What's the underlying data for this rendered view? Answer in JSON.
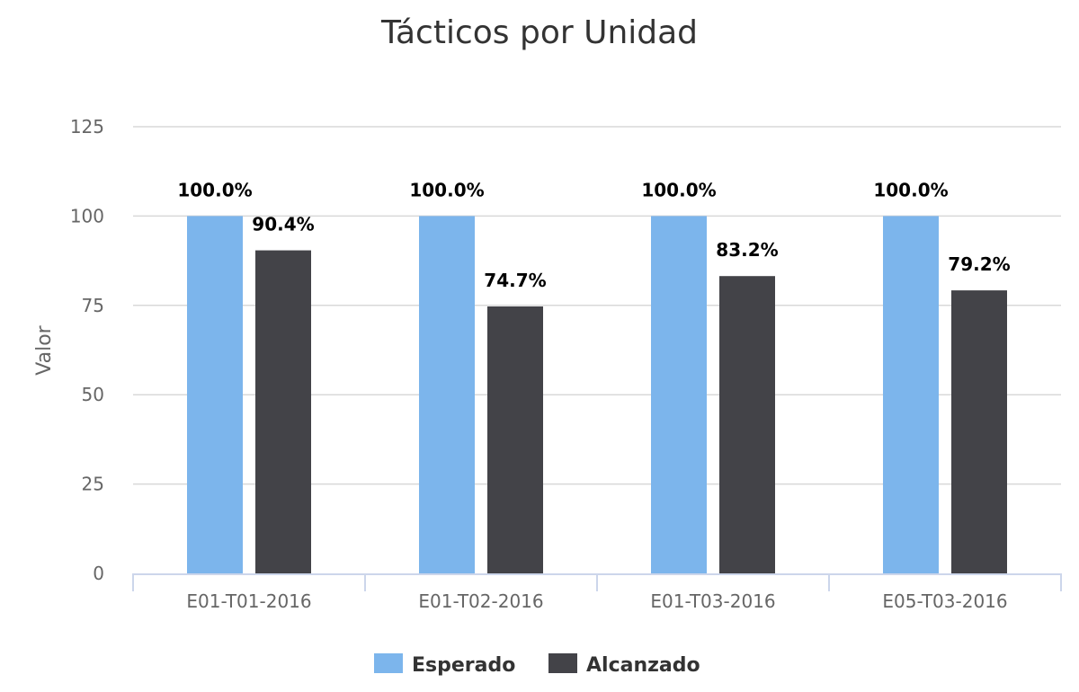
{
  "chart_data": {
    "type": "bar",
    "title": "Tácticos por Unidad",
    "ylabel": "Valor",
    "xlabel": "",
    "categories": [
      "E01-T01-2016",
      "E01-T02-2016",
      "E01-T03-2016",
      "E05-T03-2016"
    ],
    "ylim": [
      0,
      125
    ],
    "yticks": [
      "0",
      "25",
      "50",
      "75",
      "100",
      "125"
    ],
    "grid": true,
    "legend_position": "bottom-center",
    "series": [
      {
        "name": "Esperado",
        "color": "#7cb5ec",
        "values": [
          100.0,
          100.0,
          100.0,
          100.0
        ],
        "labels": [
          "100.0%",
          "100.0%",
          "100.0%",
          "100.0%"
        ]
      },
      {
        "name": "Alcanzado",
        "color": "#434348",
        "values": [
          90.4,
          74.7,
          83.2,
          79.2
        ],
        "labels": [
          "90.4%",
          "74.7%",
          "83.2%",
          "79.2%"
        ]
      }
    ]
  }
}
